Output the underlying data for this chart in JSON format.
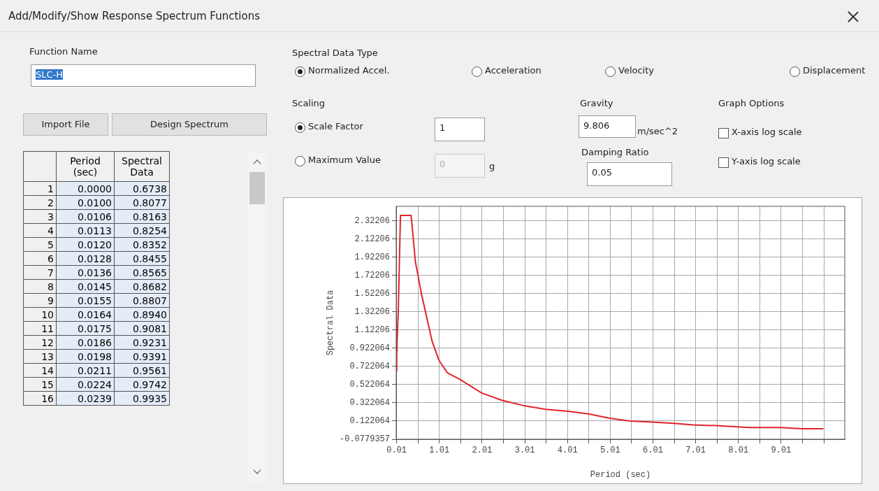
{
  "chart_data": {
    "type": "line",
    "title": "Add/Modify/Show Response Spectrum Functions",
    "xlabel": "Period (sec)",
    "ylabel": "Spectral Data",
    "x": [
      0,
      0.01,
      0.0106,
      0.0113,
      0.012,
      0.0128,
      0.0136,
      0.0145,
      0.0155,
      0.0164,
      0.0175,
      0.0186,
      0.0198,
      0.0211,
      0.0224,
      0.0239,
      0.05,
      0.1,
      0.35,
      0.45,
      0.6,
      0.84,
      1.0,
      1.2,
      1.49,
      2.0,
      2.47,
      3.0,
      3.5,
      4.02,
      4.5,
      5.0,
      5.48,
      6.0,
      6.5,
      6.95,
      7.5,
      8.26,
      9.0,
      9.5,
      10.0
    ],
    "values": [
      0.6738,
      0.8077,
      0.8163,
      0.8254,
      0.8352,
      0.8455,
      0.8565,
      0.8682,
      0.8807,
      0.894,
      0.9081,
      0.9231,
      0.9391,
      0.9561,
      0.9742,
      0.9935,
      1.34,
      2.38,
      2.38,
      1.87,
      1.5,
      1.0,
      0.79,
      0.65,
      0.58,
      0.43,
      0.35,
      0.29,
      0.25,
      0.23,
      0.2,
      0.153,
      0.122,
      0.11,
      0.097,
      0.079,
      0.071,
      0.05,
      0.05,
      0.037,
      0.037
    ],
    "color": "#e0252b",
    "xlim": [
      0,
      10.5
    ],
    "xticks": [
      0.01,
      {
        "value": 0.51,
        "label": null
      },
      1.01,
      {
        "value": 1.51,
        "label": null
      },
      2.01,
      {
        "value": 2.51,
        "label": null
      },
      3.01,
      {
        "value": 3.51,
        "label": null
      },
      4.01,
      {
        "value": 4.51,
        "label": null
      },
      5.01,
      {
        "value": 5.51,
        "label": null
      },
      6.01,
      {
        "value": 6.51,
        "label": null
      },
      7.01,
      {
        "value": 7.51,
        "label": null
      },
      8.01,
      {
        "value": 8.51,
        "label": null
      },
      9.01,
      {
        "value": 9.51,
        "label": null
      },
      {
        "value": 10.01,
        "label": null
      }
    ],
    "ylim": [
      -0.0779357,
      2.48
    ],
    "yticks": [
      -0.0779357,
      0.122064,
      0.322064,
      0.522064,
      0.722064,
      0.922064,
      1.12206,
      1.32206,
      1.52206,
      1.72206,
      1.92206,
      2.12206,
      2.32206
    ],
    "grid": true,
    "legend": false,
    "marker": "none",
    "line_style": "solid",
    "annotations": [
      "Function Name",
      "SLC-H",
      "Import File",
      "Design Spectrum",
      "Period (sec)",
      "Spectral Data",
      "Spectral Data Type",
      "Normalized Accel.",
      "Acceleration",
      "Velocity",
      "Displacement",
      "Scaling",
      "Scale Factor",
      "1",
      "Maximum Value",
      "0",
      "g",
      "Gravity",
      "9.806",
      "m/sec^2",
      "Damping Ratio",
      "0.05",
      "X-axis log scale",
      "Y-axis log scale",
      "Graph Options",
      "1",
      "0.0000",
      "0.6738",
      "2",
      "0.0100",
      "0.8077",
      "3",
      "0.0106",
      "0.8163",
      "4",
      "0.0113",
      "0.8254",
      "5",
      "0.0120",
      "0.8352",
      "6",
      "0.0128",
      "0.8455",
      "7",
      "0.0136",
      "0.8565",
      "8",
      "0.0145",
      "0.8682",
      "9",
      "0.0155",
      "0.8807",
      "10",
      "0.0164",
      "0.8940",
      "11",
      "0.0175",
      "0.9081",
      "12",
      "0.0186",
      "0.9231",
      "13",
      "0.0198",
      "0.9391",
      "14",
      "0.0211",
      "0.9561",
      "15",
      "0.0224",
      "0.9742",
      "16",
      "0.0239",
      "0.9935"
    ]
  }
}
